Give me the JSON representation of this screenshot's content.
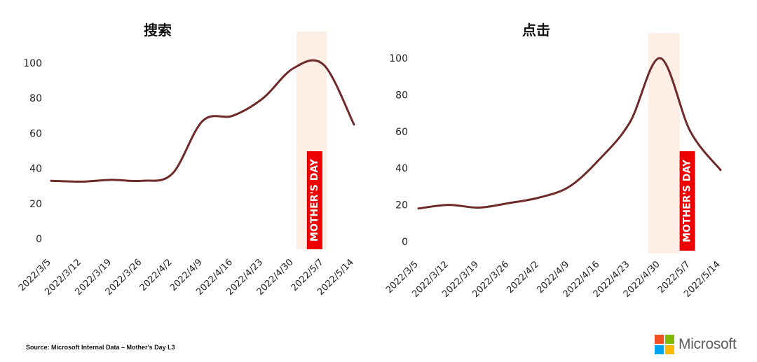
{
  "chart_data": [
    {
      "type": "line",
      "title": "搜索",
      "categories": [
        "2022/3/5",
        "2022/3/12",
        "2022/3/19",
        "2022/3/26",
        "2022/4/2",
        "2022/4/9",
        "2022/4/16",
        "2022/4/23",
        "2022/4/30",
        "2022/5/7",
        "2022/5/14"
      ],
      "values": [
        33,
        32.5,
        33.5,
        33,
        37,
        67,
        70,
        80,
        97,
        99,
        65
      ],
      "yticks": [
        0,
        20,
        40,
        60,
        80,
        100
      ],
      "ylim": [
        0,
        100
      ],
      "line_color": "#6e2a28",
      "highlight": {
        "from": 8.1,
        "to": 9.1,
        "color": "#fdeee6"
      },
      "annotation": {
        "text": "MOTHER'S DAY",
        "x": 8.7,
        "color": "#ee0000",
        "text_color": "#ffffff"
      }
    },
    {
      "type": "line",
      "title": "点击",
      "categories": [
        "2022/3/5",
        "2022/3/12",
        "2022/3/19",
        "2022/3/26",
        "2022/4/2",
        "2022/4/9",
        "2022/4/16",
        "2022/4/23",
        "2022/4/30",
        "2022/5/7",
        "2022/5/14"
      ],
      "values": [
        18,
        20,
        18.5,
        21,
        24,
        30,
        45,
        65,
        100,
        60,
        39
      ],
      "yticks": [
        0,
        20,
        40,
        60,
        80,
        100
      ],
      "ylim": [
        0,
        100
      ],
      "line_color": "#6e2a28",
      "highlight": {
        "from": 7.6,
        "to": 8.65,
        "color": "#fdeee6"
      },
      "annotation": {
        "text": "MOTHER'S DAY",
        "x": 8.9,
        "color": "#ee0000",
        "text_color": "#ffffff"
      }
    }
  ],
  "footer": {
    "source": "Source: Microsoft Internal Data – Mother's Day L3",
    "brand": "Microsoft",
    "logo_colors": [
      "#f25022",
      "#7fba00",
      "#00a4ef",
      "#ffb900"
    ]
  }
}
